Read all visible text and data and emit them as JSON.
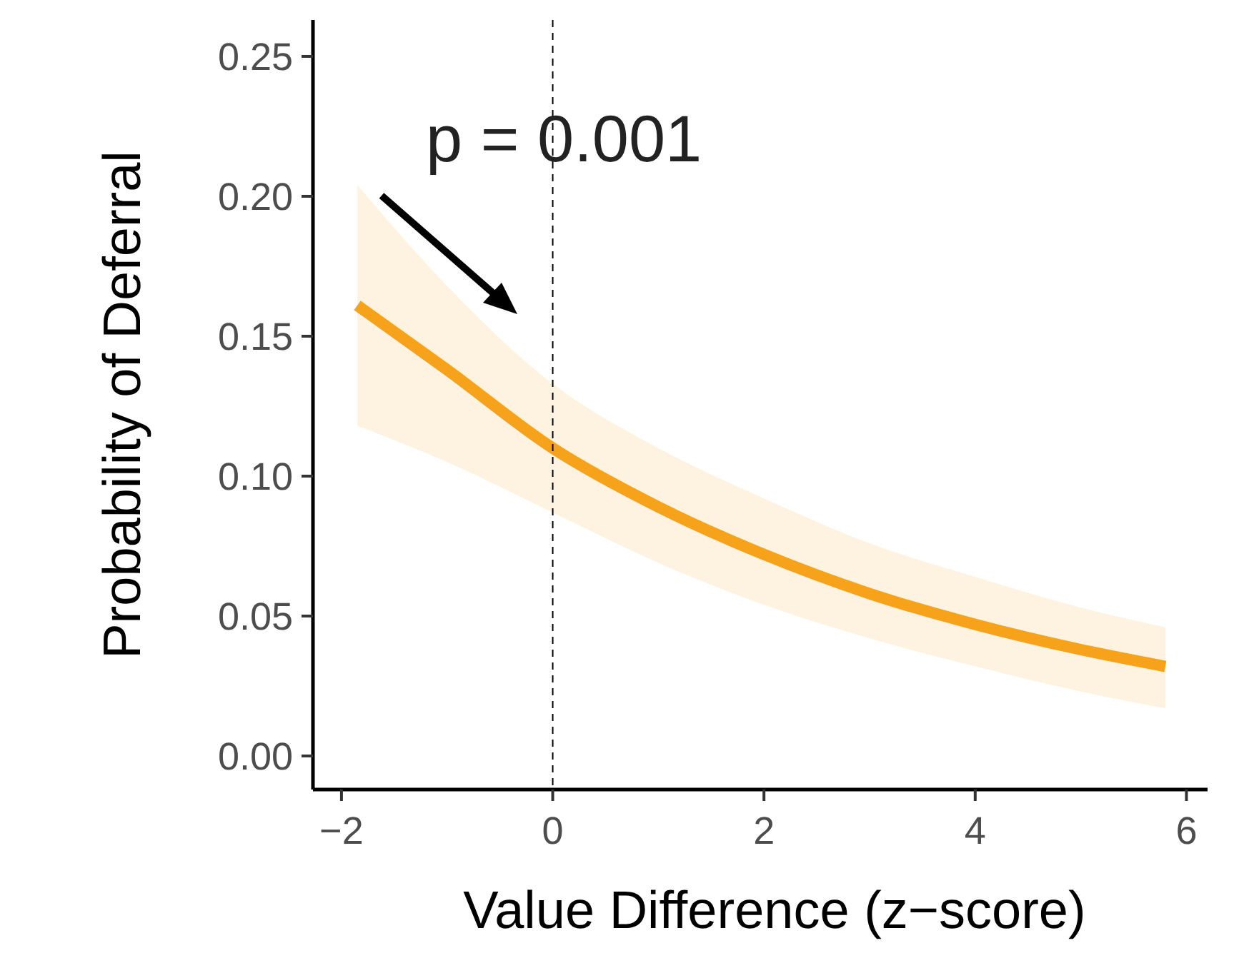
{
  "chart_data": {
    "type": "line",
    "xlabel": "Value Difference (z−score)",
    "ylabel": "Probability of Deferral",
    "annotations": [
      "p = 0.001"
    ],
    "x": [
      -1.85,
      -1,
      0,
      1,
      2,
      3,
      4,
      5,
      5.8
    ],
    "series": [
      {
        "color": "#f7a21b",
        "values": [
          0.161,
          0.138,
          0.11,
          0.089,
          0.072,
          0.058,
          0.047,
          0.038,
          0.032
        ],
        "upper": [
          0.204,
          0.168,
          0.133,
          0.11,
          0.092,
          0.076,
          0.064,
          0.053,
          0.046
        ],
        "lower": [
          0.118,
          0.105,
          0.087,
          0.069,
          0.054,
          0.042,
          0.032,
          0.023,
          0.017
        ]
      }
    ],
    "xlim": [
      -2.27,
      6.2
    ],
    "xticks": [
      {
        "value": -2,
        "label": "−2"
      },
      0,
      2,
      4,
      6
    ],
    "ylim": [
      -0.012,
      0.263
    ],
    "yticks": [
      {
        "value": 0,
        "label": "0.00"
      },
      {
        "value": 0.05,
        "label": "0.05"
      },
      {
        "value": 0.1,
        "label": "0.10"
      },
      {
        "value": 0.15,
        "label": "0.15"
      },
      {
        "value": 0.2,
        "label": "0.20"
      },
      {
        "value": 0.25,
        "label": "0.25"
      }
    ],
    "ref_lines": [
      {
        "axis": "x",
        "value": 0,
        "line_style": "dashed",
        "color": "#000000"
      }
    ],
    "grid": false,
    "line_style": "solid",
    "marker": "none"
  }
}
